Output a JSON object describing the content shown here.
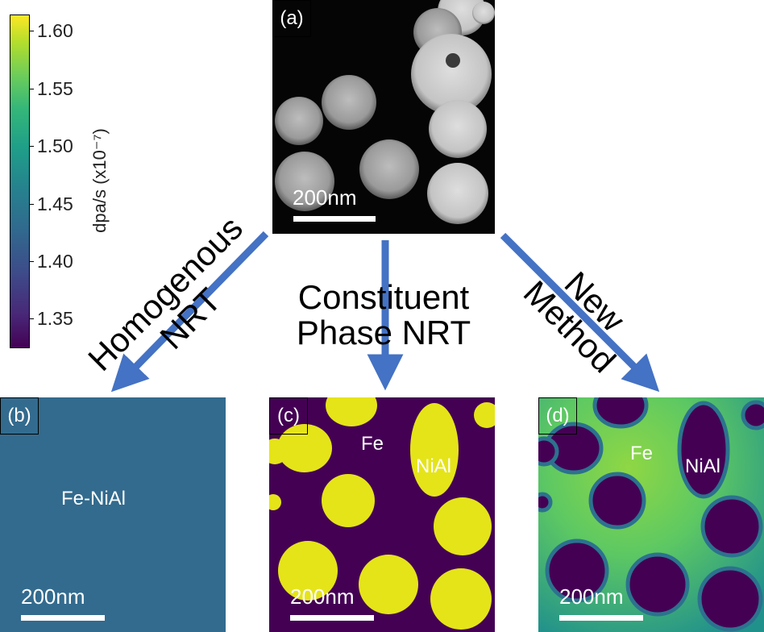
{
  "colorbar": {
    "unit_label": "dpa/s (x10⁻⁷)",
    "ticks": [
      "1.60",
      "1.55",
      "1.50",
      "1.45",
      "1.40",
      "1.35"
    ],
    "colormap": "viridis",
    "colors": {
      "low": "#440154",
      "high": "#fde725"
    }
  },
  "panels": {
    "a": {
      "tag": "(a)",
      "scale": "200nm",
      "type": "micrograph"
    },
    "b": {
      "tag": "(b)",
      "scale": "200nm",
      "label": "Fe-NiAl",
      "color": "#336b8e"
    },
    "c": {
      "tag": "(c)",
      "scale": "200nm",
      "label_fe": "Fe",
      "label_nial": "NiAl",
      "colors": {
        "fe": "#440154",
        "nial": "#e5e419"
      }
    },
    "d": {
      "tag": "(d)",
      "scale": "200nm",
      "label_fe": "Fe",
      "label_nial": "NiAl",
      "colors": {
        "fe": "#3fbf71",
        "nial": "#440154"
      }
    }
  },
  "methods": {
    "left": {
      "line1": "Homogenous",
      "line2": "NRT"
    },
    "middle": {
      "line1": "Constituent",
      "line2": "Phase NRT"
    },
    "right": {
      "line1": "New",
      "line2": "Method"
    },
    "arrow_color": "#4472c4"
  }
}
